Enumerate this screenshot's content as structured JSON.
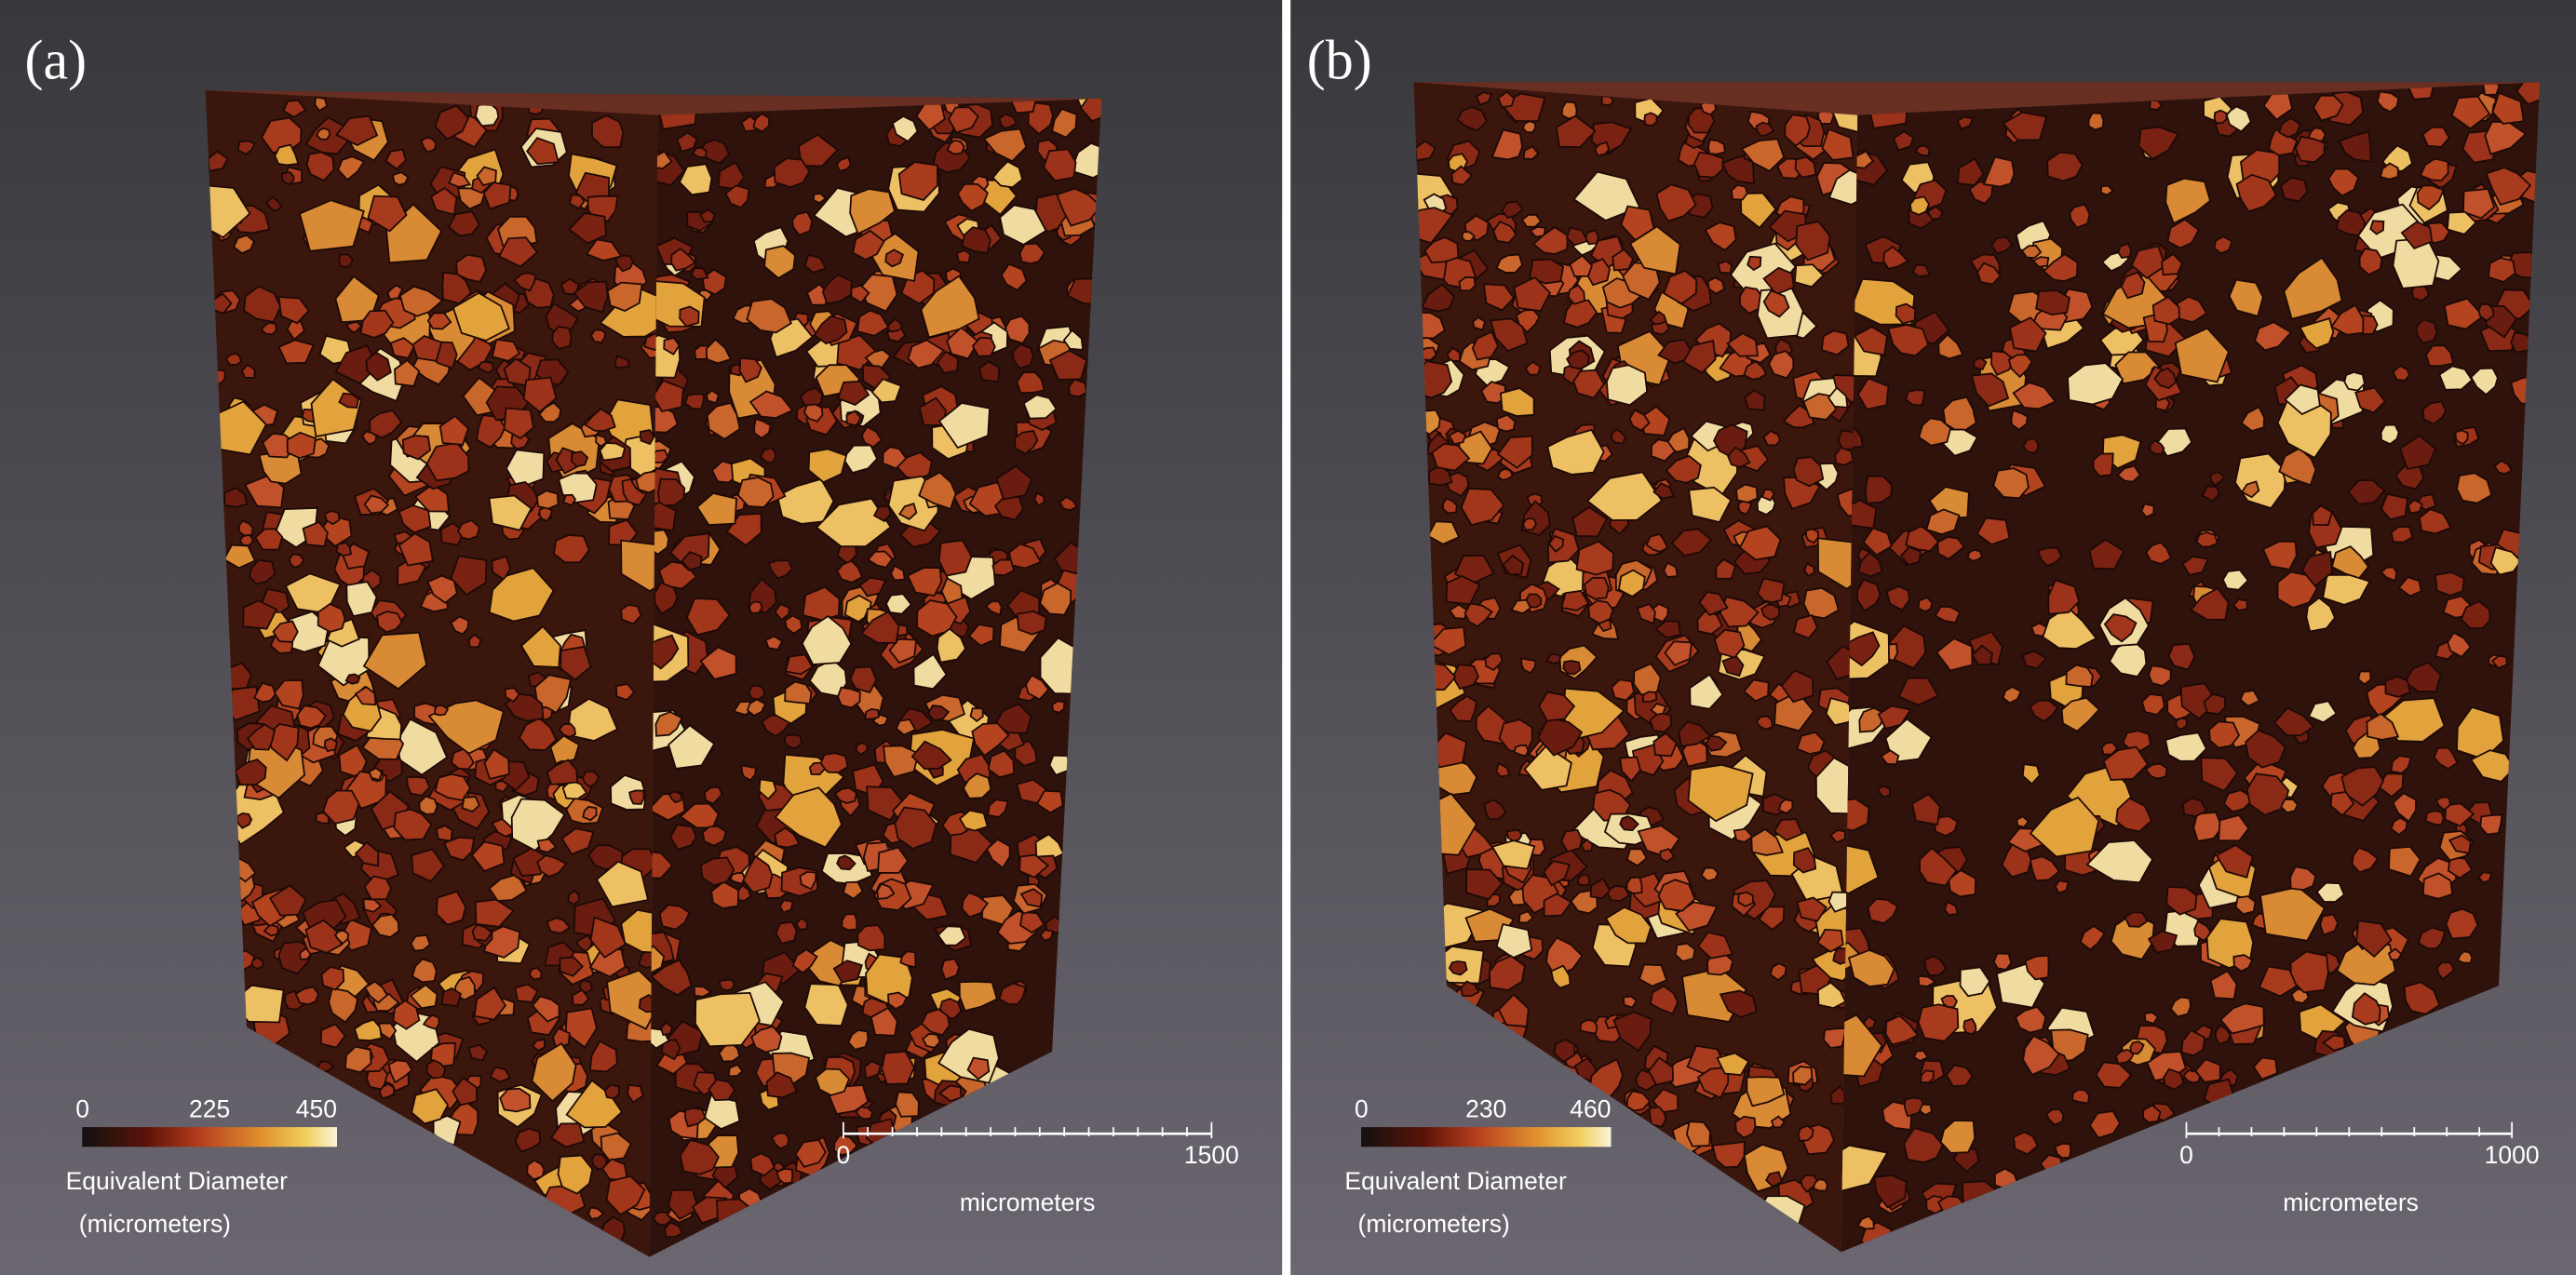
{
  "panels": [
    {
      "label": "(a)",
      "colorbar": {
        "ticks": [
          0,
          225,
          450
        ],
        "title": "Equivalent Diameter",
        "unit": "(micrometers)"
      },
      "scale_bar": {
        "ticks": [
          0,
          1500
        ],
        "unit": "micrometers"
      }
    },
    {
      "label": "(b)",
      "colorbar": {
        "ticks": [
          0,
          230,
          460
        ],
        "title": "Equivalent Diameter",
        "unit": "(micrometers)"
      },
      "scale_bar": {
        "ticks": [
          0,
          1000
        ],
        "unit": "micrometers"
      }
    }
  ]
}
